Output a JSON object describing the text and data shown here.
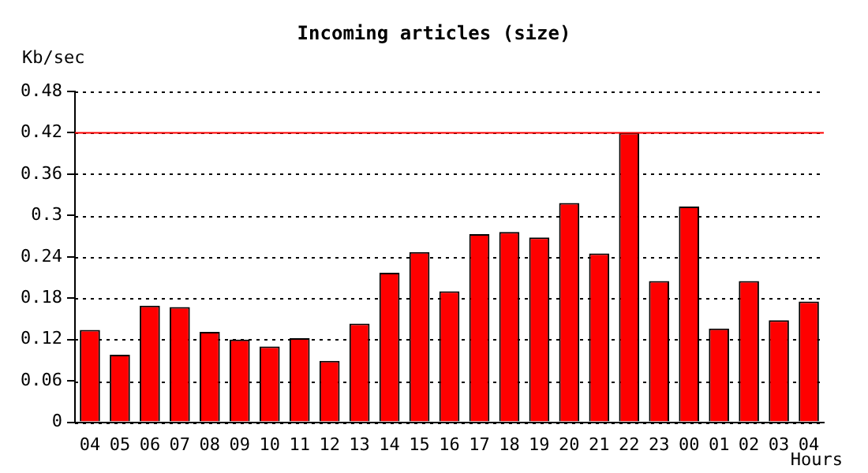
{
  "chart_data": {
    "type": "bar",
    "title": "Incoming articles (size)",
    "ylabel": "Kb/sec",
    "xlabel": "Hours",
    "categories": [
      "04",
      "05",
      "06",
      "07",
      "08",
      "09",
      "10",
      "11",
      "12",
      "13",
      "14",
      "15",
      "16",
      "17",
      "18",
      "19",
      "20",
      "21",
      "22",
      "23",
      "00",
      "01",
      "02",
      "03",
      "04"
    ],
    "values": [
      0.134,
      0.098,
      0.169,
      0.167,
      0.131,
      0.12,
      0.11,
      0.122,
      0.089,
      0.143,
      0.217,
      0.247,
      0.19,
      0.273,
      0.276,
      0.268,
      0.318,
      0.245,
      0.42,
      0.205,
      0.313,
      0.136,
      0.205,
      0.148,
      0.175
    ],
    "color": "#ff0000",
    "ylim": [
      0,
      0.48
    ],
    "yticks": [
      0,
      0.06,
      0.12,
      0.18,
      0.24,
      0.3,
      0.36,
      0.42,
      0.48
    ],
    "grid": "y",
    "line_style": "dotted",
    "ref_lines": [
      {
        "axis": "y",
        "value": 0.42,
        "color": "#ff0000"
      }
    ]
  }
}
